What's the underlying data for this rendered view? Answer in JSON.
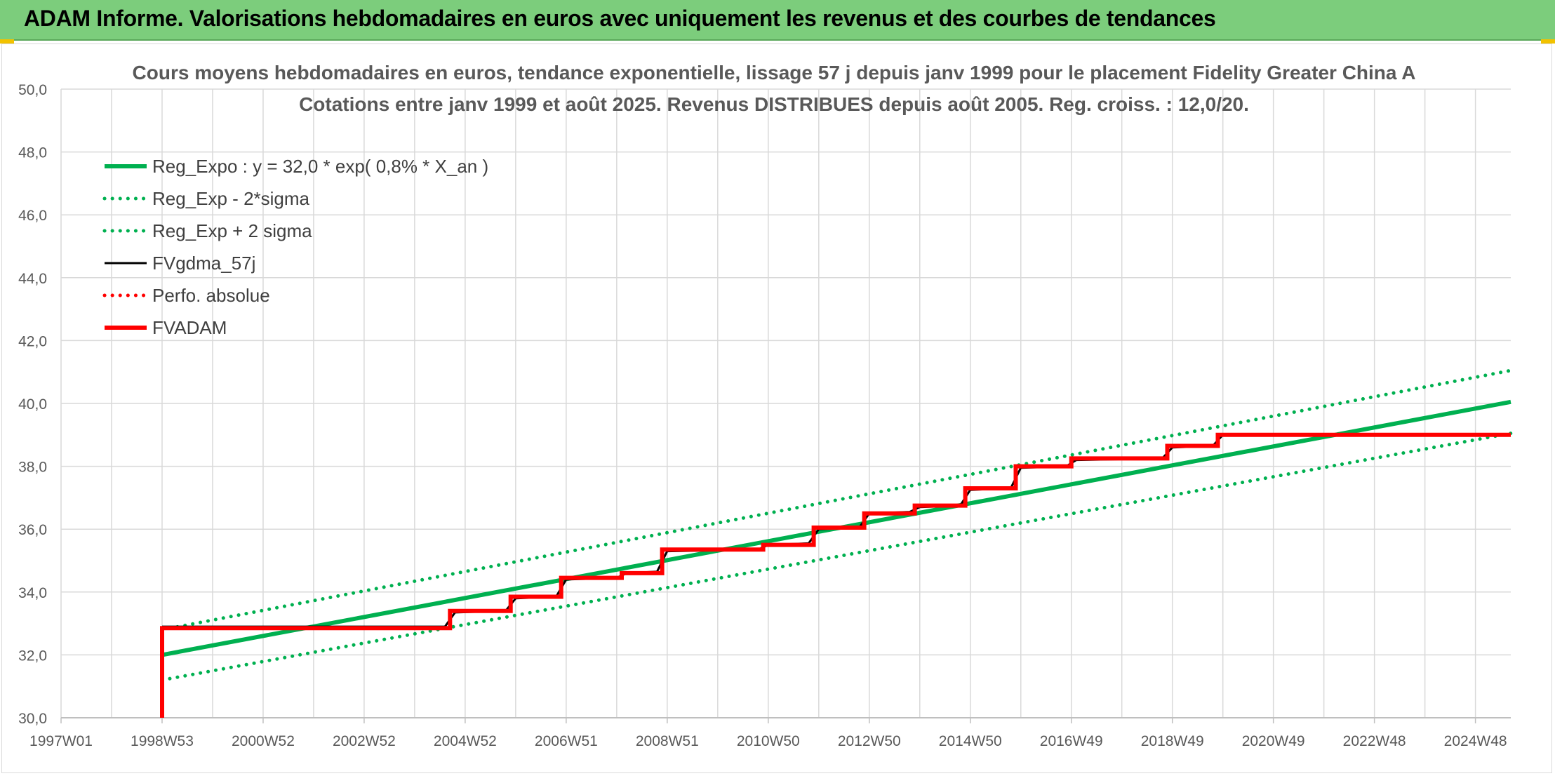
{
  "banner": {
    "title": "ADAM Informe. Valorisations hebdomadaires en euros avec uniquement les revenus et des courbes de tendances",
    "color": "#7ccd7c"
  },
  "chart_data": {
    "type": "line",
    "title_line1": "Cours moyens hebdomadaires en euros, tendance exponentielle, lissage 57 j depuis janv 1999 pour le placement Fidelity Greater China A",
    "title_line2": "Cotations entre janv 1999 et août 2025. Revenus DISTRIBUES depuis août 2005. Reg. croiss. : 12,0/20.",
    "xlabel": "",
    "ylabel": "",
    "ylim": [
      30,
      50
    ],
    "xlim": [
      1997.0,
      2025.7
    ],
    "y_ticks": [
      "30,0",
      "32,0",
      "34,0",
      "36,0",
      "38,0",
      "40,0",
      "42,0",
      "44,0",
      "46,0",
      "48,0",
      "50,0"
    ],
    "x_tick_labels": [
      "1997W01",
      "1998W53",
      "2000W52",
      "2002W52",
      "2004W52",
      "2006W51",
      "2008W51",
      "2010W50",
      "2012W50",
      "2014W50",
      "2016W49",
      "2018W49",
      "2020W49",
      "2022W48",
      "2024W48"
    ],
    "grid": true,
    "legend_position": "top-left",
    "series": [
      {
        "name": "Reg_Expo : y = 32,0 * exp( 0,8% *  X_an )",
        "color": "#00b050",
        "style": "solid",
        "x": [
          1999.0,
          2025.7
        ],
        "y": [
          32.0,
          40.05
        ]
      },
      {
        "name": "Reg_Exp - 2*sigma",
        "color": "#00b050",
        "style": "dotted",
        "x": [
          1999.0,
          2025.7
        ],
        "y": [
          31.2,
          39.05
        ]
      },
      {
        "name": "Reg_Exp + 2 sigma",
        "color": "#00b050",
        "style": "dotted",
        "x": [
          1999.0,
          2025.7
        ],
        "y": [
          32.8,
          41.05
        ]
      },
      {
        "name": "FVgdma_57j",
        "color": "#000000",
        "style": "solid",
        "x": [
          1999.0,
          2004.6,
          2004.8,
          2005.8,
          2006.0,
          2006.8,
          2007.0,
          2008.0,
          2008.2,
          2008.8,
          2009.0,
          2010.8,
          2011.0,
          2011.8,
          2012.0,
          2012.8,
          2013.0,
          2013.8,
          2014.0,
          2014.8,
          2015.0,
          2015.8,
          2016.0,
          2016.9,
          2017.1,
          2018.8,
          2019.0,
          2019.8,
          2020.0,
          2025.7
        ],
        "y": [
          32.9,
          32.9,
          33.35,
          33.4,
          33.8,
          33.85,
          34.4,
          34.45,
          34.6,
          34.65,
          35.3,
          35.35,
          35.5,
          35.55,
          36.0,
          36.05,
          36.5,
          36.55,
          36.7,
          36.75,
          37.25,
          37.3,
          37.95,
          38.0,
          38.2,
          38.25,
          38.6,
          38.65,
          39.0,
          39.0
        ]
      },
      {
        "name": "Perfo. absolue",
        "color": "#ff0000",
        "style": "dotted",
        "x": [],
        "y": []
      },
      {
        "name": "FVADAM",
        "color": "#ff0000",
        "style": "solid",
        "x": [
          1999.0,
          1999.0,
          2004.7,
          2004.7,
          2005.9,
          2005.9,
          2006.9,
          2006.9,
          2008.1,
          2008.1,
          2008.9,
          2008.9,
          2010.9,
          2010.9,
          2011.9,
          2011.9,
          2012.9,
          2012.9,
          2013.9,
          2013.9,
          2014.9,
          2014.9,
          2015.9,
          2015.9,
          2017.0,
          2017.0,
          2018.9,
          2018.9,
          2019.9,
          2019.9,
          2025.7
        ],
        "y": [
          30.0,
          32.85,
          32.85,
          33.4,
          33.4,
          33.85,
          33.85,
          34.45,
          34.45,
          34.6,
          34.6,
          35.35,
          35.35,
          35.5,
          35.5,
          36.05,
          36.05,
          36.5,
          36.5,
          36.75,
          36.75,
          37.3,
          37.3,
          38.0,
          38.0,
          38.25,
          38.25,
          38.65,
          38.65,
          39.0,
          39.0
        ]
      }
    ]
  }
}
